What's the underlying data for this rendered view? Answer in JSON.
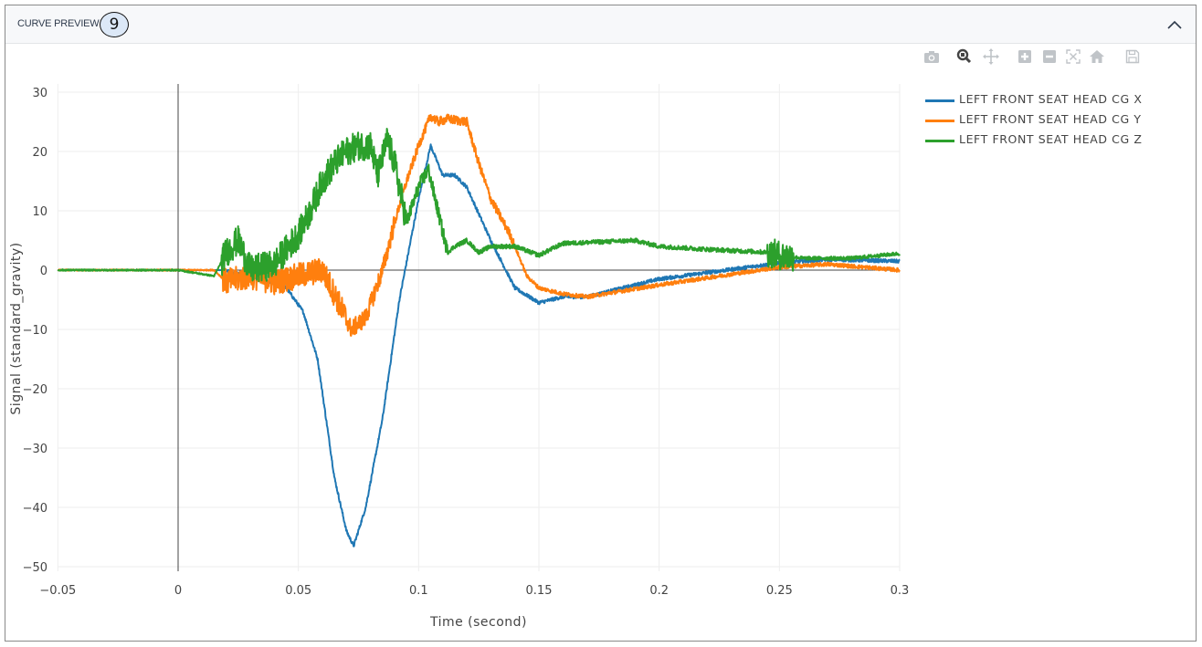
{
  "panel": {
    "title": "CURVE PREVIEW",
    "badge": "9",
    "collapse_icon": "chevron-up-icon"
  },
  "modebar": {
    "buttons": [
      {
        "name": "camera-icon",
        "label": "Download plot as png"
      },
      {
        "name": "zoom-icon",
        "label": "Zoom",
        "active": true
      },
      {
        "name": "pan-icon",
        "label": "Pan"
      },
      {
        "name": "zoom-in-icon",
        "label": "Zoom in"
      },
      {
        "name": "zoom-out-icon",
        "label": "Zoom out"
      },
      {
        "name": "autoscale-icon",
        "label": "Autoscale"
      },
      {
        "name": "home-icon",
        "label": "Reset axes"
      },
      {
        "name": "save-icon",
        "label": "Save"
      }
    ]
  },
  "chart_data": {
    "type": "line",
    "title": "",
    "xlabel": "Time (second)",
    "ylabel": "Signal (standard_gravity)",
    "xlim": [
      -0.05,
      0.3
    ],
    "ylim": [
      -50,
      32
    ],
    "x_ticks": [
      "−0.05",
      "0",
      "0.05",
      "0.1",
      "0.15",
      "0.2",
      "0.25",
      "0.3"
    ],
    "x_tick_values": [
      -0.05,
      0,
      0.05,
      0.1,
      0.15,
      0.2,
      0.25,
      0.3
    ],
    "y_ticks": [
      "30",
      "20",
      "10",
      "0",
      "−10",
      "−20",
      "−30",
      "−40",
      "−50"
    ],
    "y_tick_values": [
      30,
      20,
      10,
      0,
      -10,
      -20,
      -30,
      -40,
      -50
    ],
    "grid": true,
    "legend_position": "right",
    "series": [
      {
        "name": "LEFT FRONT SEAT HEAD CG X",
        "color": "#1f77b4",
        "noise": 0.3,
        "x": [
          -0.05,
          0.0,
          0.018,
          0.03,
          0.045,
          0.052,
          0.058,
          0.065,
          0.07,
          0.073,
          0.078,
          0.085,
          0.092,
          0.1,
          0.105,
          0.11,
          0.115,
          0.12,
          0.13,
          0.14,
          0.15,
          0.16,
          0.17,
          0.2,
          0.25,
          0.27,
          0.3
        ],
        "values": [
          0,
          0,
          0,
          -1,
          -3,
          -7,
          -15,
          -35,
          -44,
          -46.5,
          -40,
          -25,
          -5,
          12,
          21,
          16,
          16,
          14,
          5,
          -3,
          -5.5,
          -4.5,
          -4.5,
          -1.5,
          1.2,
          1.8,
          1.5
        ]
      },
      {
        "name": "LEFT FRONT SEAT HEAD CG Y",
        "color": "#ff7f0e",
        "noise": 2.2,
        "x": [
          -0.05,
          0.0,
          0.015,
          0.02,
          0.03,
          0.04,
          0.05,
          0.06,
          0.065,
          0.072,
          0.078,
          0.085,
          0.09,
          0.095,
          0.1,
          0.105,
          0.108,
          0.112,
          0.12,
          0.125,
          0.13,
          0.138,
          0.145,
          0.15,
          0.16,
          0.17,
          0.2,
          0.25,
          0.27,
          0.3
        ],
        "values": [
          0,
          0,
          0,
          -2,
          -1,
          -2,
          -1,
          0,
          -4,
          -10,
          -8,
          0,
          8,
          15,
          21,
          26,
          25,
          25.5,
          25,
          18,
          12,
          6,
          -1,
          -3,
          -4,
          -4.5,
          -2.5,
          0.5,
          1,
          0
        ],
        "noise_profile": [
          [
            0.018,
            0.07,
            1.0
          ],
          [
            0.07,
            0.09,
            0.7
          ],
          [
            0.09,
            0.14,
            0.35
          ],
          [
            0.14,
            0.3,
            0.15
          ]
        ]
      },
      {
        "name": "LEFT FRONT SEAT HEAD CG Z",
        "color": "#2ca02c",
        "noise": 2.5,
        "x": [
          -0.05,
          0.0,
          0.015,
          0.02,
          0.025,
          0.03,
          0.04,
          0.05,
          0.055,
          0.06,
          0.065,
          0.07,
          0.075,
          0.08,
          0.083,
          0.087,
          0.09,
          0.095,
          0.1,
          0.104,
          0.108,
          0.112,
          0.115,
          0.12,
          0.125,
          0.13,
          0.14,
          0.15,
          0.16,
          0.19,
          0.2,
          0.22,
          0.245,
          0.25,
          0.26,
          0.28,
          0.3
        ],
        "values": [
          0,
          0,
          -1,
          3,
          5,
          0,
          1,
          6,
          10,
          15,
          18,
          20,
          21,
          21,
          16,
          22,
          18,
          8,
          14,
          17,
          10,
          3,
          4,
          5,
          3,
          4,
          4,
          2.5,
          4.5,
          5,
          4,
          3.5,
          3,
          2.5,
          2,
          2,
          2.8
        ],
        "noise_profile": [
          [
            0.018,
            0.095,
            1.0
          ],
          [
            0.095,
            0.112,
            0.5
          ],
          [
            0.112,
            0.245,
            0.15
          ],
          [
            0.245,
            0.256,
            1.0
          ],
          [
            0.256,
            0.3,
            0.12
          ]
        ]
      }
    ]
  }
}
